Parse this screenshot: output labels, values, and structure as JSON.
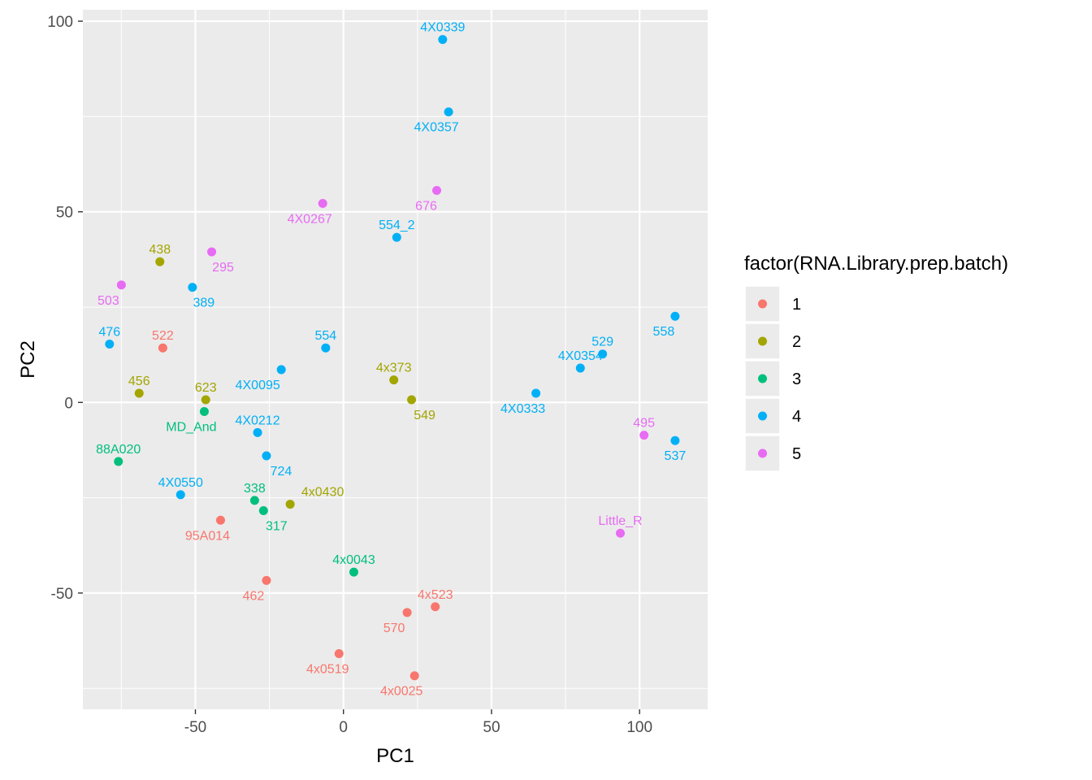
{
  "chart_data": {
    "type": "scatter",
    "xlabel": "PC1",
    "ylabel": "PC2",
    "xlim": [
      -88,
      123
    ],
    "ylim": [
      -80.5,
      103
    ],
    "x_ticks": [
      -50,
      0,
      50,
      100
    ],
    "y_ticks": [
      -50,
      0,
      50,
      100
    ],
    "grid": true,
    "legend": {
      "title": "factor(RNA.Library.prep.batch)",
      "placement": "right",
      "entries": [
        {
          "label": "1",
          "color": "#F8766D"
        },
        {
          "label": "2",
          "color": "#A3A500"
        },
        {
          "label": "3",
          "color": "#00BF7D"
        },
        {
          "label": "4",
          "color": "#00B0F6"
        },
        {
          "label": "5",
          "color": "#E76BF3"
        }
      ]
    },
    "points": [
      {
        "label": "4X0339",
        "x": 33.5,
        "y": 95.2,
        "batch": "4"
      },
      {
        "label": "4X0357",
        "x": 35.5,
        "y": 76.2,
        "batch": "4"
      },
      {
        "label": "676",
        "x": 31.5,
        "y": 55.6,
        "batch": "5"
      },
      {
        "label": "4X0267",
        "x": -7,
        "y": 52.2,
        "batch": "5"
      },
      {
        "label": "554_2",
        "x": 18,
        "y": 43.3,
        "batch": "4"
      },
      {
        "label": "438",
        "x": -62,
        "y": 36.9,
        "batch": "2"
      },
      {
        "label": "295",
        "x": -44.5,
        "y": 39.5,
        "batch": "5"
      },
      {
        "label": "389",
        "x": -51,
        "y": 30.2,
        "batch": "4"
      },
      {
        "label": "503",
        "x": -75,
        "y": 30.8,
        "batch": "5"
      },
      {
        "label": "476",
        "x": -79,
        "y": 15.3,
        "batch": "4"
      },
      {
        "label": "522",
        "x": -61,
        "y": 14.3,
        "batch": "1"
      },
      {
        "label": "554",
        "x": -6,
        "y": 14.3,
        "batch": "4"
      },
      {
        "label": "4X0095",
        "x": -21,
        "y": 8.6,
        "batch": "4"
      },
      {
        "label": "4x373",
        "x": 17,
        "y": 5.9,
        "batch": "2"
      },
      {
        "label": "456",
        "x": -69,
        "y": 2.4,
        "batch": "2"
      },
      {
        "label": "623",
        "x": -46.5,
        "y": 0.7,
        "batch": "2"
      },
      {
        "label": "549",
        "x": 23,
        "y": 0.7,
        "batch": "2"
      },
      {
        "label": "MD_And",
        "x": -47,
        "y": -2.4,
        "batch": "3"
      },
      {
        "label": "4X0212",
        "x": -29,
        "y": -7.9,
        "batch": "4"
      },
      {
        "label": "724",
        "x": -26,
        "y": -14,
        "batch": "4"
      },
      {
        "label": "88A020",
        "x": -76,
        "y": -15.5,
        "batch": "3"
      },
      {
        "label": "4X0550",
        "x": -55,
        "y": -24.2,
        "batch": "4"
      },
      {
        "label": "338",
        "x": -30,
        "y": -25.7,
        "batch": "3"
      },
      {
        "label": "317",
        "x": -27,
        "y": -28.4,
        "batch": "3"
      },
      {
        "label": "4x0430",
        "x": -18,
        "y": -26.7,
        "batch": "2"
      },
      {
        "label": "95A014",
        "x": -41.5,
        "y": -30.9,
        "batch": "1"
      },
      {
        "label": "4x0043",
        "x": 3.5,
        "y": -44.5,
        "batch": "3"
      },
      {
        "label": "462",
        "x": -26,
        "y": -46.7,
        "batch": "1"
      },
      {
        "label": "4x523",
        "x": 31,
        "y": -53.6,
        "batch": "1"
      },
      {
        "label": "570",
        "x": 21.5,
        "y": -55.1,
        "batch": "1"
      },
      {
        "label": "4x0519",
        "x": -1.5,
        "y": -65.9,
        "batch": "1"
      },
      {
        "label": "4x0025",
        "x": 24,
        "y": -71.7,
        "batch": "1"
      },
      {
        "label": "4X0333",
        "x": 65,
        "y": 2.4,
        "batch": "4"
      },
      {
        "label": "4X0354",
        "x": 80,
        "y": 9,
        "batch": "4"
      },
      {
        "label": "529",
        "x": 87.5,
        "y": 12.7,
        "batch": "4"
      },
      {
        "label": "558",
        "x": 112,
        "y": 22.6,
        "batch": "4"
      },
      {
        "label": "495",
        "x": 101.5,
        "y": -8.6,
        "batch": "5"
      },
      {
        "label": "537",
        "x": 112,
        "y": -10,
        "batch": "4"
      },
      {
        "label": "Little_R",
        "x": 93.5,
        "y": -34.3,
        "batch": "5"
      }
    ]
  }
}
